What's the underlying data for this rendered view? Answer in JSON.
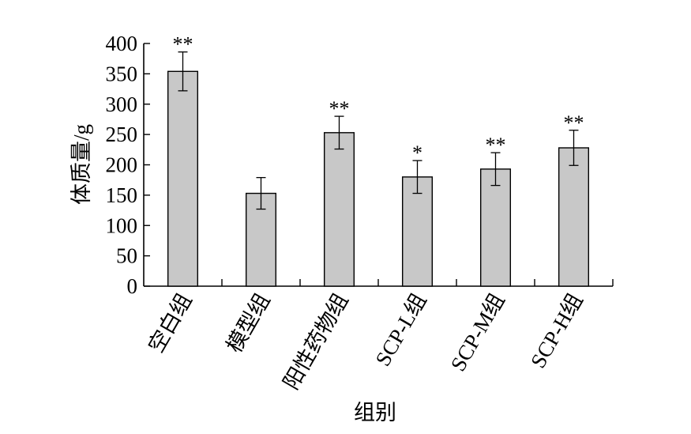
{
  "chart_data": {
    "type": "bar",
    "categories": [
      "空白组",
      "模型组",
      "阳性药物组",
      "SCP-L组",
      "SCP-M组",
      "SCP-H组"
    ],
    "values": [
      354,
      153,
      253,
      180,
      193,
      228
    ],
    "errors": [
      32,
      26,
      27,
      27,
      27,
      29
    ],
    "significance": [
      "**",
      "",
      "**",
      "*",
      "**",
      "**"
    ],
    "xlabel": "组别",
    "ylabel": "体质量/g",
    "ylim": [
      0,
      400
    ],
    "yticks": [
      0,
      50,
      100,
      150,
      200,
      250,
      300,
      350,
      400
    ],
    "grid": false,
    "colors": {
      "bar": "#c8c8c8",
      "edge": "#000000"
    }
  }
}
